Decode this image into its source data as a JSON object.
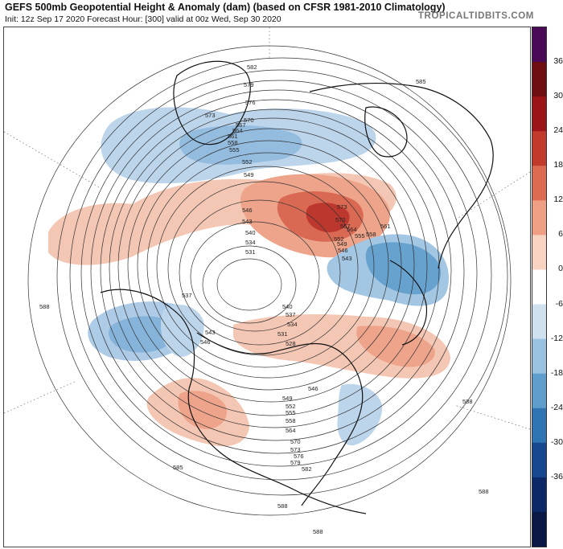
{
  "header": {
    "title": "GEFS 500mb Geopotential Height & Anomaly (dam) (based on CFSR 1981-2010 Climatology)",
    "subtitle": "Init: 12z Sep 17 2020   Forecast Hour: [300]   valid at 00z Wed, Sep 30 2020",
    "brand": "TROPICALTIDBITS.COM"
  },
  "colorbar": {
    "ticks": [
      "36",
      "30",
      "24",
      "18",
      "12",
      "6",
      "0",
      "-6",
      "-12",
      "-18",
      "-24",
      "-30",
      "-36"
    ],
    "colors": [
      "#4b0a55",
      "#6e0d12",
      "#9c1418",
      "#c23a2c",
      "#dc6b52",
      "#ef9f84",
      "#f8d3c2",
      "#ffffff",
      "#cfe0ef",
      "#98c2e0",
      "#5f9dcc",
      "#2f74b3",
      "#17488f",
      "#0c2867",
      "#0a1845"
    ]
  },
  "map": {
    "projection": "north-polar-stereographic",
    "contour_labels": [
      "582",
      "579",
      "576",
      "573",
      "570",
      "567",
      "564",
      "561",
      "558",
      "555",
      "552",
      "549",
      "546",
      "543",
      "540",
      "534",
      "531",
      "537",
      "543",
      "546",
      "573",
      "570",
      "567",
      "564",
      "561",
      "558",
      "555",
      "552",
      "549",
      "546",
      "543",
      "540",
      "537",
      "534",
      "531",
      "528",
      "585",
      "588",
      "588",
      "546",
      "549",
      "552",
      "555",
      "558",
      "564",
      "570",
      "573",
      "576",
      "579",
      "582",
      "585",
      "588",
      "588",
      "588"
    ]
  }
}
